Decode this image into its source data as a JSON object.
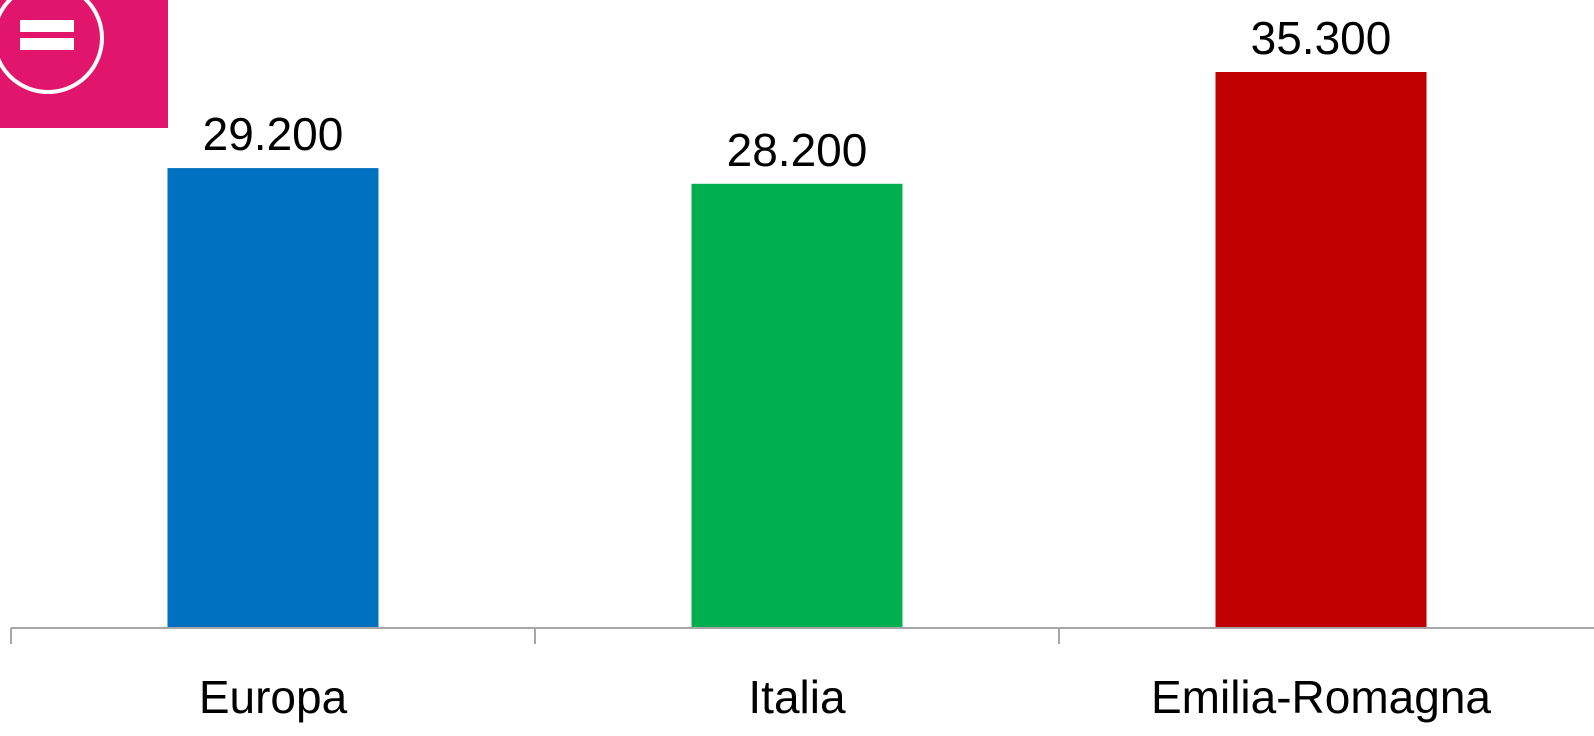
{
  "badge": {
    "icon": "equal-sign-circle-icon",
    "color": "#e0156b"
  },
  "chart_data": {
    "type": "bar",
    "categories": [
      "Europa",
      "Italia",
      "Emilia-Romagna"
    ],
    "values": [
      29200,
      28200,
      35300
    ],
    "value_labels": [
      "29.200",
      "28.200",
      "35.300"
    ],
    "colors": [
      "#0070c0",
      "#00b050",
      "#c00000"
    ],
    "title": "",
    "xlabel": "",
    "ylabel": "",
    "ylim": [
      0,
      36000
    ],
    "grid": false,
    "legend": "none"
  }
}
